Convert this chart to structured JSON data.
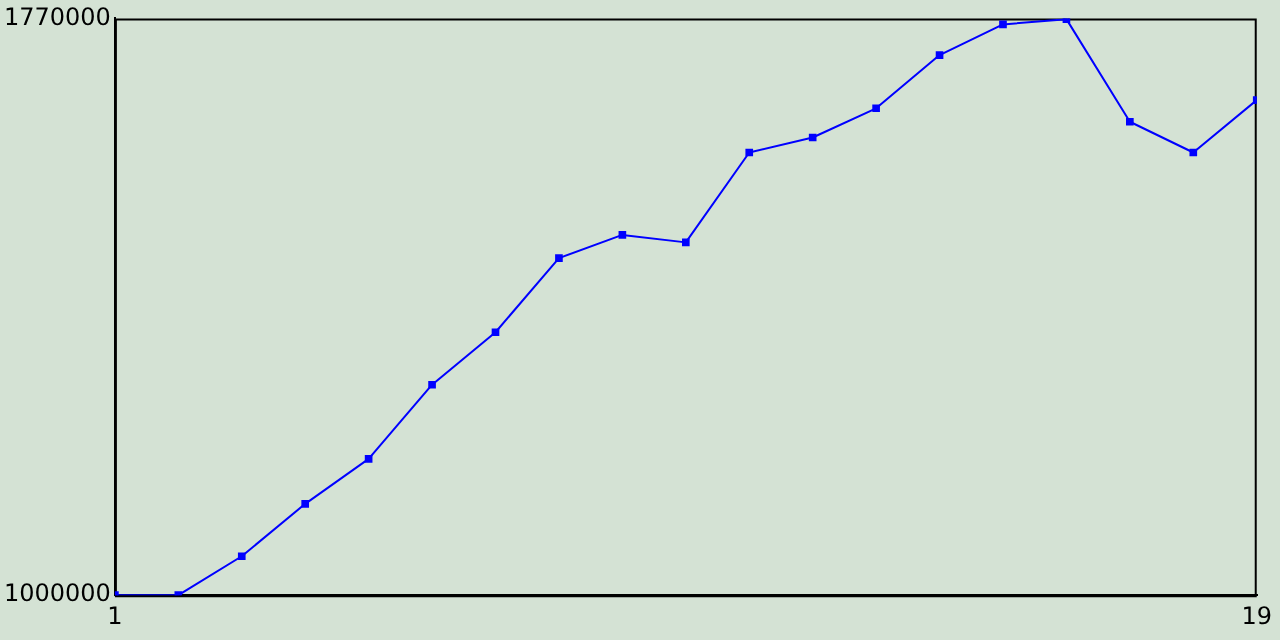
{
  "chart_data": {
    "type": "line",
    "x": [
      1,
      2,
      3,
      4,
      5,
      6,
      7,
      8,
      9,
      10,
      11,
      12,
      13,
      14,
      15,
      16,
      17,
      18,
      19
    ],
    "series": [
      {
        "color": "#0000ff",
        "values": [
          1000000,
          1000000,
          1052000,
          1122000,
          1182000,
          1281000,
          1351000,
          1450000,
          1481000,
          1471000,
          1591000,
          1611000,
          1650000,
          1721000,
          1762000,
          1769000,
          1632000,
          1591000,
          1661000
        ]
      }
    ],
    "xlim": [
      1,
      19
    ],
    "xticks": [
      1,
      19
    ],
    "ylim": [
      1000000,
      1770000
    ],
    "yticks": [
      1000000,
      1770000
    ],
    "grid": false,
    "legend": false,
    "marker": "square",
    "line_style": "solid"
  }
}
